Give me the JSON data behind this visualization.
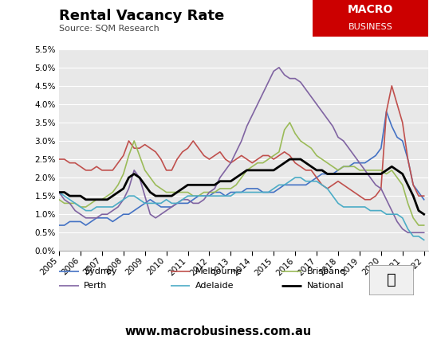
{
  "title": "Rental Vacancy Rate",
  "subtitle": "Source: SQM Research",
  "watermark": "www.macrobusiness.com.au",
  "background_color": "#e8e8e8",
  "fig_background": "#ffffff",
  "ylim": [
    0.0,
    0.055
  ],
  "yticks": [
    0.0,
    0.005,
    0.01,
    0.015,
    0.02,
    0.025,
    0.03,
    0.035,
    0.04,
    0.045,
    0.05,
    0.055
  ],
  "series": {
    "Sydney": {
      "color": "#4472c4",
      "data_years": [
        2005.0,
        2005.25,
        2005.5,
        2005.75,
        2006.0,
        2006.25,
        2006.5,
        2006.75,
        2007.0,
        2007.25,
        2007.5,
        2007.75,
        2008.0,
        2008.25,
        2008.5,
        2008.75,
        2009.0,
        2009.25,
        2009.5,
        2009.75,
        2010.0,
        2010.25,
        2010.5,
        2010.75,
        2011.0,
        2011.25,
        2011.5,
        2011.75,
        2012.0,
        2012.25,
        2012.5,
        2012.75,
        2013.0,
        2013.25,
        2013.5,
        2013.75,
        2014.0,
        2014.25,
        2014.5,
        2014.75,
        2015.0,
        2015.25,
        2015.5,
        2015.75,
        2016.0,
        2016.25,
        2016.5,
        2016.75,
        2017.0,
        2017.25,
        2017.5,
        2017.75,
        2018.0,
        2018.25,
        2018.5,
        2018.75,
        2019.0,
        2019.25,
        2019.5,
        2019.75,
        2020.0,
        2020.25,
        2020.5,
        2020.75,
        2021.0,
        2021.25,
        2021.5,
        2021.75,
        2022.0
      ],
      "values": [
        0.007,
        0.007,
        0.008,
        0.008,
        0.008,
        0.007,
        0.008,
        0.009,
        0.009,
        0.009,
        0.008,
        0.009,
        0.01,
        0.01,
        0.011,
        0.012,
        0.013,
        0.014,
        0.013,
        0.012,
        0.012,
        0.012,
        0.013,
        0.013,
        0.013,
        0.014,
        0.015,
        0.015,
        0.015,
        0.016,
        0.016,
        0.015,
        0.016,
        0.016,
        0.016,
        0.017,
        0.017,
        0.017,
        0.016,
        0.016,
        0.016,
        0.017,
        0.018,
        0.018,
        0.018,
        0.018,
        0.018,
        0.019,
        0.02,
        0.021,
        0.021,
        0.021,
        0.022,
        0.023,
        0.023,
        0.024,
        0.024,
        0.024,
        0.025,
        0.026,
        0.028,
        0.038,
        0.034,
        0.031,
        0.03,
        0.025,
        0.018,
        0.016,
        0.014
      ]
    },
    "Melbourne": {
      "color": "#c0504d",
      "data_years": [
        2005.0,
        2005.25,
        2005.5,
        2005.75,
        2006.0,
        2006.25,
        2006.5,
        2006.75,
        2007.0,
        2007.25,
        2007.5,
        2007.75,
        2008.0,
        2008.25,
        2008.5,
        2008.75,
        2009.0,
        2009.25,
        2009.5,
        2009.75,
        2010.0,
        2010.25,
        2010.5,
        2010.75,
        2011.0,
        2011.25,
        2011.5,
        2011.75,
        2012.0,
        2012.25,
        2012.5,
        2012.75,
        2013.0,
        2013.25,
        2013.5,
        2013.75,
        2014.0,
        2014.25,
        2014.5,
        2014.75,
        2015.0,
        2015.25,
        2015.5,
        2015.75,
        2016.0,
        2016.25,
        2016.5,
        2016.75,
        2017.0,
        2017.25,
        2017.5,
        2017.75,
        2018.0,
        2018.25,
        2018.5,
        2018.75,
        2019.0,
        2019.25,
        2019.5,
        2019.75,
        2020.0,
        2020.25,
        2020.5,
        2020.75,
        2021.0,
        2021.25,
        2021.5,
        2021.75,
        2022.0
      ],
      "values": [
        0.025,
        0.025,
        0.024,
        0.024,
        0.023,
        0.022,
        0.022,
        0.023,
        0.022,
        0.022,
        0.022,
        0.024,
        0.026,
        0.03,
        0.028,
        0.028,
        0.029,
        0.028,
        0.027,
        0.025,
        0.022,
        0.022,
        0.025,
        0.027,
        0.028,
        0.03,
        0.028,
        0.026,
        0.025,
        0.026,
        0.027,
        0.025,
        0.024,
        0.025,
        0.026,
        0.025,
        0.024,
        0.025,
        0.026,
        0.026,
        0.025,
        0.026,
        0.027,
        0.026,
        0.024,
        0.023,
        0.022,
        0.022,
        0.02,
        0.018,
        0.017,
        0.018,
        0.019,
        0.018,
        0.017,
        0.016,
        0.015,
        0.014,
        0.014,
        0.015,
        0.017,
        0.038,
        0.045,
        0.04,
        0.035,
        0.025,
        0.018,
        0.015,
        0.015
      ]
    },
    "Brisbane": {
      "color": "#9bbb59",
      "data_years": [
        2005.0,
        2005.25,
        2005.5,
        2005.75,
        2006.0,
        2006.25,
        2006.5,
        2006.75,
        2007.0,
        2007.25,
        2007.5,
        2007.75,
        2008.0,
        2008.25,
        2008.5,
        2008.75,
        2009.0,
        2009.25,
        2009.5,
        2009.75,
        2010.0,
        2010.25,
        2010.5,
        2010.75,
        2011.0,
        2011.25,
        2011.5,
        2011.75,
        2012.0,
        2012.25,
        2012.5,
        2012.75,
        2013.0,
        2013.25,
        2013.5,
        2013.75,
        2014.0,
        2014.25,
        2014.5,
        2014.75,
        2015.0,
        2015.25,
        2015.5,
        2015.75,
        2016.0,
        2016.25,
        2016.5,
        2016.75,
        2017.0,
        2017.25,
        2017.5,
        2017.75,
        2018.0,
        2018.25,
        2018.5,
        2018.75,
        2019.0,
        2019.25,
        2019.5,
        2019.75,
        2020.0,
        2020.25,
        2020.5,
        2020.75,
        2021.0,
        2021.25,
        2021.5,
        2021.75,
        2022.0
      ],
      "values": [
        0.014,
        0.013,
        0.013,
        0.013,
        0.012,
        0.012,
        0.013,
        0.014,
        0.014,
        0.015,
        0.016,
        0.018,
        0.021,
        0.026,
        0.03,
        0.026,
        0.022,
        0.02,
        0.018,
        0.017,
        0.016,
        0.016,
        0.016,
        0.016,
        0.016,
        0.015,
        0.015,
        0.016,
        0.016,
        0.016,
        0.017,
        0.017,
        0.017,
        0.018,
        0.02,
        0.022,
        0.023,
        0.024,
        0.024,
        0.025,
        0.026,
        0.027,
        0.033,
        0.035,
        0.032,
        0.03,
        0.029,
        0.028,
        0.026,
        0.025,
        0.024,
        0.023,
        0.022,
        0.023,
        0.023,
        0.023,
        0.022,
        0.022,
        0.022,
        0.022,
        0.022,
        0.021,
        0.022,
        0.02,
        0.018,
        0.013,
        0.009,
        0.007,
        0.007
      ]
    },
    "Perth": {
      "color": "#8064a2",
      "data_years": [
        2005.0,
        2005.25,
        2005.5,
        2005.75,
        2006.0,
        2006.25,
        2006.5,
        2006.75,
        2007.0,
        2007.25,
        2007.5,
        2007.75,
        2008.0,
        2008.25,
        2008.5,
        2008.75,
        2009.0,
        2009.25,
        2009.5,
        2009.75,
        2010.0,
        2010.25,
        2010.5,
        2010.75,
        2011.0,
        2011.25,
        2011.5,
        2011.75,
        2012.0,
        2012.25,
        2012.5,
        2012.75,
        2013.0,
        2013.25,
        2013.5,
        2013.75,
        2014.0,
        2014.25,
        2014.5,
        2014.75,
        2015.0,
        2015.25,
        2015.5,
        2015.75,
        2016.0,
        2016.25,
        2016.5,
        2016.75,
        2017.0,
        2017.25,
        2017.5,
        2017.75,
        2018.0,
        2018.25,
        2018.5,
        2018.75,
        2019.0,
        2019.25,
        2019.5,
        2019.75,
        2020.0,
        2020.25,
        2020.5,
        2020.75,
        2021.0,
        2021.25,
        2021.5,
        2021.75,
        2022.0
      ],
      "values": [
        0.016,
        0.014,
        0.013,
        0.011,
        0.01,
        0.009,
        0.009,
        0.009,
        0.01,
        0.01,
        0.011,
        0.012,
        0.014,
        0.017,
        0.022,
        0.02,
        0.015,
        0.01,
        0.009,
        0.01,
        0.011,
        0.012,
        0.013,
        0.014,
        0.014,
        0.013,
        0.013,
        0.014,
        0.016,
        0.017,
        0.02,
        0.022,
        0.024,
        0.027,
        0.03,
        0.034,
        0.037,
        0.04,
        0.043,
        0.046,
        0.049,
        0.05,
        0.048,
        0.047,
        0.047,
        0.046,
        0.044,
        0.042,
        0.04,
        0.038,
        0.036,
        0.034,
        0.031,
        0.03,
        0.028,
        0.026,
        0.024,
        0.022,
        0.02,
        0.018,
        0.017,
        0.014,
        0.011,
        0.008,
        0.006,
        0.005,
        0.005,
        0.005,
        0.005
      ]
    },
    "Adelaide": {
      "color": "#4bacc6",
      "data_years": [
        2005.0,
        2005.25,
        2005.5,
        2005.75,
        2006.0,
        2006.25,
        2006.5,
        2006.75,
        2007.0,
        2007.25,
        2007.5,
        2007.75,
        2008.0,
        2008.25,
        2008.5,
        2008.75,
        2009.0,
        2009.25,
        2009.5,
        2009.75,
        2010.0,
        2010.25,
        2010.5,
        2010.75,
        2011.0,
        2011.25,
        2011.5,
        2011.75,
        2012.0,
        2012.25,
        2012.5,
        2012.75,
        2013.0,
        2013.25,
        2013.5,
        2013.75,
        2014.0,
        2014.25,
        2014.5,
        2014.75,
        2015.0,
        2015.25,
        2015.5,
        2015.75,
        2016.0,
        2016.25,
        2016.5,
        2016.75,
        2017.0,
        2017.25,
        2017.5,
        2017.75,
        2018.0,
        2018.25,
        2018.5,
        2018.75,
        2019.0,
        2019.25,
        2019.5,
        2019.75,
        2020.0,
        2020.25,
        2020.5,
        2020.75,
        2021.0,
        2021.25,
        2021.5,
        2021.75,
        2022.0
      ],
      "values": [
        0.016,
        0.015,
        0.014,
        0.013,
        0.012,
        0.011,
        0.011,
        0.012,
        0.012,
        0.012,
        0.012,
        0.013,
        0.014,
        0.015,
        0.015,
        0.014,
        0.013,
        0.013,
        0.013,
        0.013,
        0.014,
        0.013,
        0.013,
        0.014,
        0.015,
        0.015,
        0.015,
        0.015,
        0.015,
        0.015,
        0.015,
        0.015,
        0.015,
        0.016,
        0.016,
        0.016,
        0.016,
        0.016,
        0.016,
        0.016,
        0.017,
        0.018,
        0.018,
        0.019,
        0.02,
        0.02,
        0.019,
        0.019,
        0.019,
        0.018,
        0.017,
        0.015,
        0.013,
        0.012,
        0.012,
        0.012,
        0.012,
        0.012,
        0.011,
        0.011,
        0.011,
        0.01,
        0.01,
        0.01,
        0.009,
        0.006,
        0.004,
        0.004,
        0.003
      ]
    },
    "National": {
      "color": "#000000",
      "data_years": [
        2005.0,
        2005.25,
        2005.5,
        2005.75,
        2006.0,
        2006.25,
        2006.5,
        2006.75,
        2007.0,
        2007.25,
        2007.5,
        2007.75,
        2008.0,
        2008.25,
        2008.5,
        2008.75,
        2009.0,
        2009.25,
        2009.5,
        2009.75,
        2010.0,
        2010.25,
        2010.5,
        2010.75,
        2011.0,
        2011.25,
        2011.5,
        2011.75,
        2012.0,
        2012.25,
        2012.5,
        2012.75,
        2013.0,
        2013.25,
        2013.5,
        2013.75,
        2014.0,
        2014.25,
        2014.5,
        2014.75,
        2015.0,
        2015.25,
        2015.5,
        2015.75,
        2016.0,
        2016.25,
        2016.5,
        2016.75,
        2017.0,
        2017.25,
        2017.5,
        2017.75,
        2018.0,
        2018.25,
        2018.5,
        2018.75,
        2019.0,
        2019.25,
        2019.5,
        2019.75,
        2020.0,
        2020.25,
        2020.5,
        2020.75,
        2021.0,
        2021.25,
        2021.5,
        2021.75,
        2022.0
      ],
      "values": [
        0.016,
        0.016,
        0.015,
        0.015,
        0.015,
        0.014,
        0.014,
        0.014,
        0.014,
        0.014,
        0.015,
        0.016,
        0.017,
        0.02,
        0.021,
        0.02,
        0.018,
        0.016,
        0.015,
        0.015,
        0.015,
        0.015,
        0.016,
        0.017,
        0.018,
        0.018,
        0.018,
        0.018,
        0.018,
        0.018,
        0.019,
        0.019,
        0.019,
        0.02,
        0.021,
        0.022,
        0.022,
        0.022,
        0.022,
        0.022,
        0.022,
        0.023,
        0.024,
        0.025,
        0.025,
        0.025,
        0.024,
        0.023,
        0.022,
        0.022,
        0.021,
        0.021,
        0.021,
        0.021,
        0.021,
        0.021,
        0.021,
        0.021,
        0.021,
        0.021,
        0.021,
        0.022,
        0.023,
        0.022,
        0.021,
        0.018,
        0.015,
        0.011,
        0.01
      ]
    }
  },
  "legend_order": [
    "Sydney",
    "Melbourne",
    "Brisbane",
    "Perth",
    "Adelaide",
    "National"
  ],
  "logo_color": "#cc0000",
  "logo_text_line1": "MACRO",
  "logo_text_line2": "BUSINESS"
}
